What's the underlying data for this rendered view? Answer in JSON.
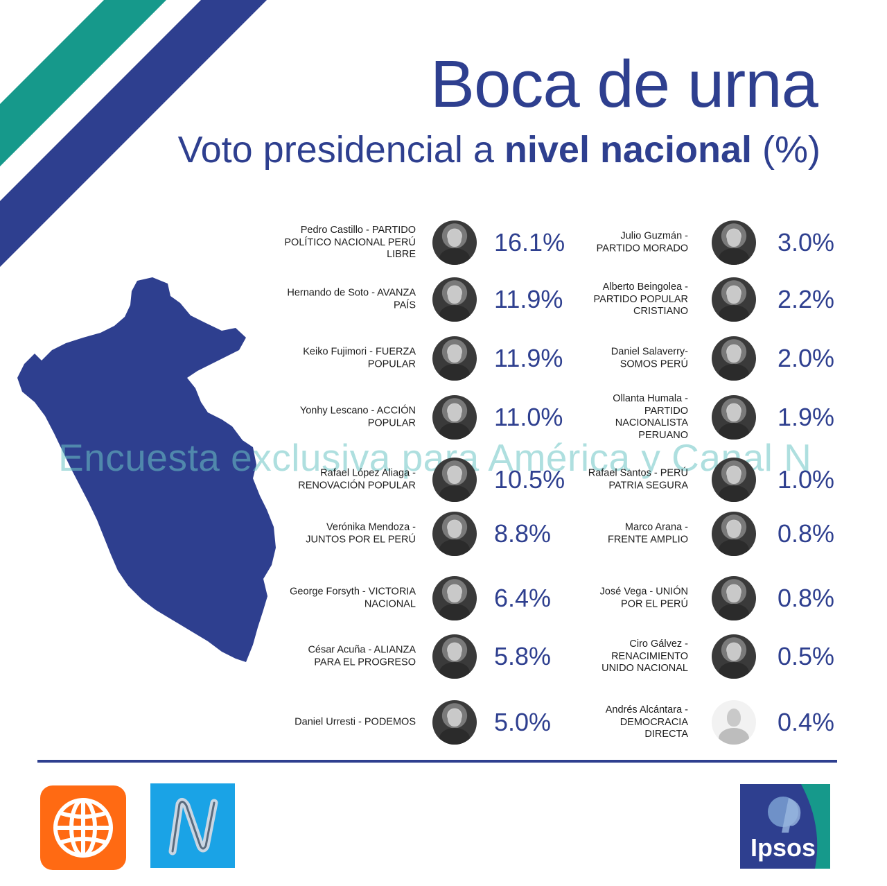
{
  "title": "Boca de urna",
  "subtitle": {
    "prefix": "Voto presidencial a ",
    "bold": "nivel nacional",
    "suffix": " (%)"
  },
  "watermark": "Encuesta exclusiva para América y Canal N",
  "colors": {
    "primary": "#2e3f8f",
    "teal": "#16998b",
    "watermark": "#6cc5c5",
    "america_orange": "#ff6a13",
    "canal_n_blue": "#1aa3e6"
  },
  "left_column": [
    {
      "name": "Pedro Castillo - PARTIDO POLÍTICO NACIONAL PERÚ LIBRE",
      "pct": "16.1%",
      "value": 16.1
    },
    {
      "name": "Hernando de Soto - AVANZA  PAÍS",
      "pct": "11.9%",
      "value": 11.9
    },
    {
      "name": "Keiko Fujimori - FUERZA POPULAR",
      "pct": "11.9%",
      "value": 11.9
    },
    {
      "name": "Yonhy Lescano - ACCIÓN POPULAR",
      "pct": "11.0%",
      "value": 11.0
    },
    {
      "name": "Rafael López Aliaga - RENOVACIÓN POPULAR",
      "pct": "10.5%",
      "value": 10.5
    },
    {
      "name": "Verónika Mendoza - JUNTOS POR EL PERÚ",
      "pct": "8.8%",
      "value": 8.8
    },
    {
      "name": "George Forsyth - VICTORIA NACIONAL",
      "pct": "6.4%",
      "value": 6.4
    },
    {
      "name": "César Acuña - ALIANZA PARA EL PROGRESO",
      "pct": "5.8%",
      "value": 5.8
    },
    {
      "name": "Daniel Urresti - PODEMOS",
      "pct": "5.0%",
      "value": 5.0
    }
  ],
  "right_column": [
    {
      "name": "Julio Guzmán - PARTIDO MORADO",
      "pct": "3.0%",
      "value": 3.0
    },
    {
      "name": "Alberto Beingolea - PARTIDO POPULAR CRISTIANO",
      "pct": "2.2%",
      "value": 2.2
    },
    {
      "name": "Daniel Salaverry- SOMOS PERÚ",
      "pct": "2.0%",
      "value": 2.0
    },
    {
      "name": "Ollanta Humala - PARTIDO NACIONALISTA PERUANO",
      "pct": "1.9%",
      "value": 1.9
    },
    {
      "name": "Rafael Santos - PERÚ PATRIA SEGURA",
      "pct": "1.0%",
      "value": 1.0
    },
    {
      "name": "Marco Arana - FRENTE AMPLIO",
      "pct": "0.8%",
      "value": 0.8
    },
    {
      "name": "José Vega - UNIÓN POR EL PERÚ",
      "pct": "0.8%",
      "value": 0.8
    },
    {
      "name": "Ciro Gálvez - RENACIMIENTO UNIDO NACIONAL",
      "pct": "0.5%",
      "value": 0.5
    },
    {
      "name": "Andrés Alcántara - DEMOCRACIA DIRECTA",
      "pct": "0.4%",
      "value": 0.4
    }
  ],
  "logos": {
    "ipsos": "Ipsos",
    "america": "globe-icon",
    "canal_n": "N"
  }
}
